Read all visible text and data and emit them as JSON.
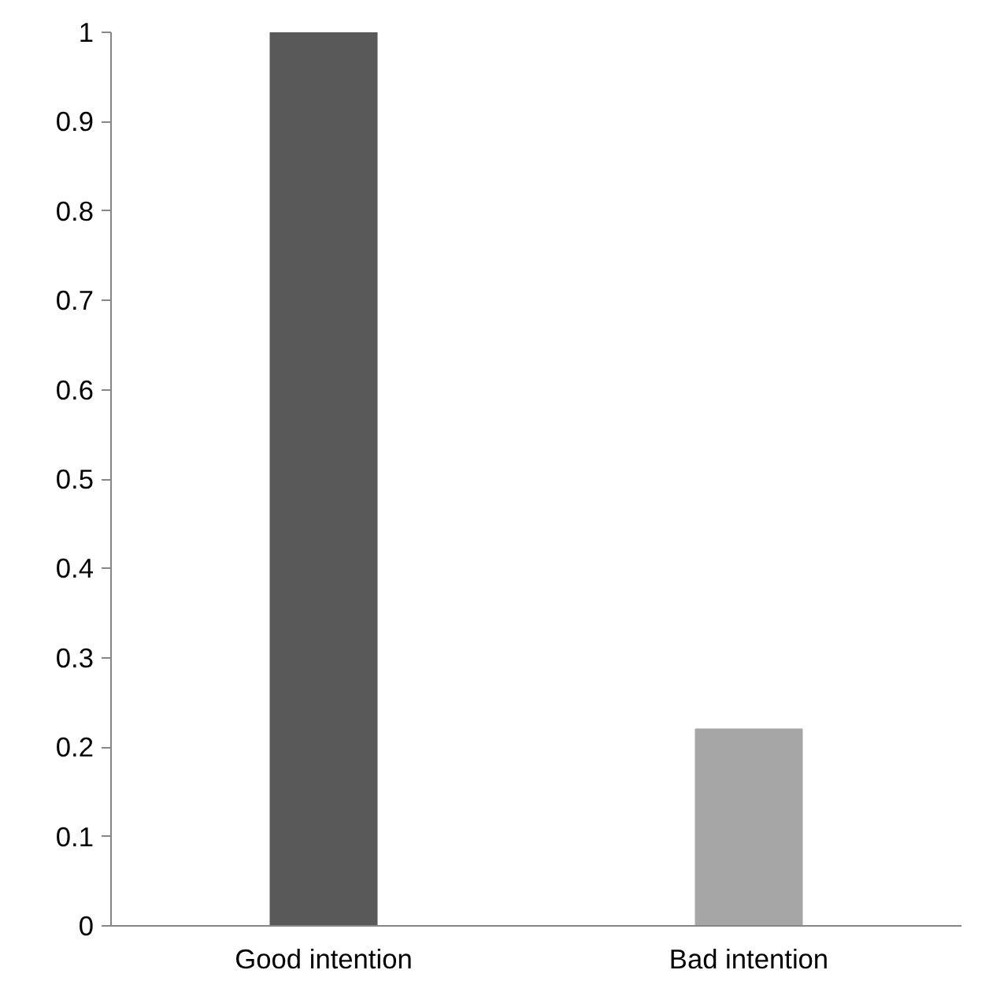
{
  "chart_data": {
    "type": "bar",
    "categories": [
      "Good intention",
      "Bad intention"
    ],
    "values": [
      1,
      0.22
    ],
    "colors": [
      "#595959",
      "#a6a6a6"
    ],
    "ylim": [
      0,
      1
    ],
    "yticks": [
      0,
      0.1,
      0.2,
      0.3,
      0.4,
      0.5,
      0.6,
      0.7,
      0.8,
      0.9,
      1
    ],
    "grid": false
  }
}
